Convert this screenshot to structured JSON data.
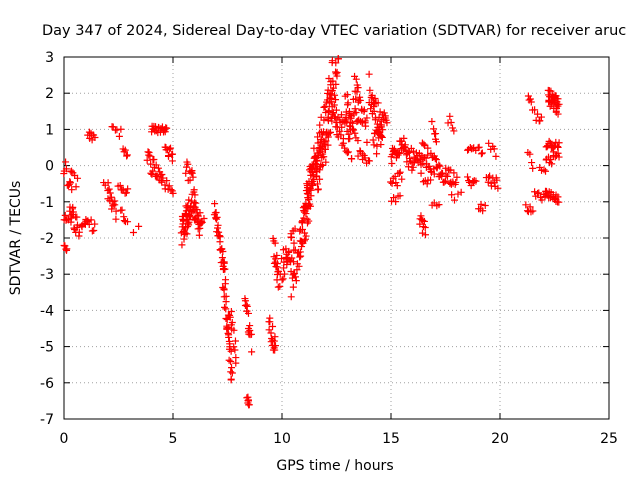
{
  "chart_data": {
    "type": "scatter",
    "title": "Day 347 of 2024, Sidereal Day-to-day VTEC variation (SDTVAR) for receiver aruc",
    "xlabel": "GPS time / hours",
    "ylabel": "SDTVAR / TECUs",
    "xlim": [
      0,
      25
    ],
    "ylim": [
      -7,
      3
    ],
    "xticks": [
      0,
      5,
      10,
      15,
      20,
      25
    ],
    "yticks": [
      -7,
      -6,
      -5,
      -4,
      -3,
      -2,
      -1,
      0,
      1,
      2,
      3
    ],
    "grid": true,
    "marker": "+",
    "color": "#ff0000",
    "series": [
      {
        "name": "SDTVAR",
        "clusters": [
          {
            "t0": 0.0,
            "t1": 0.35,
            "v0": -0.1,
            "v1": -0.5,
            "jitter": 0.3,
            "n": 10
          },
          {
            "t0": 0.0,
            "t1": 0.4,
            "v0": -1.4,
            "v1": -1.3,
            "jitter": 0.15,
            "n": 10
          },
          {
            "t0": 0.0,
            "t1": 0.15,
            "v0": -2.2,
            "v1": -2.3,
            "jitter": 0.1,
            "n": 5
          },
          {
            "t0": 0.3,
            "t1": 0.7,
            "v0": -1.3,
            "v1": -1.8,
            "jitter": 0.25,
            "n": 14
          },
          {
            "t0": 0.3,
            "t1": 0.6,
            "v0": -0.2,
            "v1": -0.5,
            "jitter": 0.15,
            "n": 6
          },
          {
            "t0": 0.8,
            "t1": 1.1,
            "v0": -1.6,
            "v1": -1.5,
            "jitter": 0.15,
            "n": 8
          },
          {
            "t0": 1.1,
            "t1": 1.4,
            "v0": 0.9,
            "v1": 0.7,
            "jitter": 0.12,
            "n": 8
          },
          {
            "t0": 1.1,
            "t1": 1.4,
            "v0": -1.6,
            "v1": -1.7,
            "jitter": 0.15,
            "n": 6
          },
          {
            "t0": 1.8,
            "t1": 2.0,
            "v0": -0.5,
            "v1": -0.5,
            "jitter": 0.1,
            "n": 3
          },
          {
            "t0": 2.0,
            "t1": 2.4,
            "v0": -0.8,
            "v1": -1.3,
            "jitter": 0.25,
            "n": 14
          },
          {
            "t0": 2.2,
            "t1": 2.6,
            "v0": 1.1,
            "v1": 0.9,
            "jitter": 0.15,
            "n": 6
          },
          {
            "t0": 2.5,
            "t1": 2.9,
            "v0": -0.6,
            "v1": -0.7,
            "jitter": 0.12,
            "n": 8
          },
          {
            "t0": 2.6,
            "t1": 2.9,
            "v0": -1.3,
            "v1": -1.5,
            "jitter": 0.12,
            "n": 6
          },
          {
            "t0": 2.7,
            "t1": 2.9,
            "v0": 0.5,
            "v1": 0.3,
            "jitter": 0.15,
            "n": 5
          },
          {
            "t0": 3.2,
            "t1": 3.4,
            "v0": -1.8,
            "v1": -1.7,
            "jitter": 0.05,
            "n": 2
          },
          {
            "t0": 3.8,
            "t1": 4.5,
            "v0": 0.2,
            "v1": -0.3,
            "jitter": 0.3,
            "n": 22
          },
          {
            "t0": 4.0,
            "t1": 4.7,
            "v0": 1.0,
            "v1": 1.0,
            "jitter": 0.1,
            "n": 20
          },
          {
            "t0": 4.6,
            "t1": 5.0,
            "v0": 0.8,
            "v1": 0.2,
            "jitter": 0.25,
            "n": 12
          },
          {
            "t0": 4.5,
            "t1": 5.0,
            "v0": -0.4,
            "v1": -0.7,
            "jitter": 0.15,
            "n": 10
          },
          {
            "t0": 5.4,
            "t1": 5.8,
            "v0": -1.8,
            "v1": -1.2,
            "jitter": 0.45,
            "n": 34
          },
          {
            "t0": 5.6,
            "t1": 6.0,
            "v0": 0.0,
            "v1": -0.6,
            "jitter": 0.25,
            "n": 14
          },
          {
            "t0": 5.8,
            "t1": 6.3,
            "v0": -1.0,
            "v1": -1.7,
            "jitter": 0.35,
            "n": 22
          },
          {
            "t0": 6.0,
            "t1": 6.4,
            "v0": -1.5,
            "v1": -1.6,
            "jitter": 0.2,
            "n": 12
          },
          {
            "t0": 6.9,
            "t1": 7.4,
            "v0": -1.2,
            "v1": -3.0,
            "jitter": 0.3,
            "n": 30
          },
          {
            "t0": 7.3,
            "t1": 7.7,
            "v0": -3.0,
            "v1": -5.8,
            "jitter": 0.45,
            "n": 34
          },
          {
            "t0": 7.6,
            "t1": 7.9,
            "v0": -4.0,
            "v1": -5.3,
            "jitter": 0.35,
            "n": 12
          },
          {
            "t0": 8.3,
            "t1": 8.6,
            "v0": -3.6,
            "v1": -4.9,
            "jitter": 0.25,
            "n": 16
          },
          {
            "t0": 8.4,
            "t1": 8.5,
            "v0": -6.4,
            "v1": -6.6,
            "jitter": 0.08,
            "n": 8
          },
          {
            "t0": 9.4,
            "t1": 9.7,
            "v0": -4.3,
            "v1": -5.1,
            "jitter": 0.3,
            "n": 16
          },
          {
            "t0": 9.6,
            "t1": 9.9,
            "v0": -2.2,
            "v1": -3.2,
            "jitter": 0.35,
            "n": 18
          },
          {
            "t0": 10.0,
            "t1": 10.6,
            "v0": -2.8,
            "v1": -2.0,
            "jitter": 0.4,
            "n": 28
          },
          {
            "t0": 10.4,
            "t1": 11.2,
            "v0": -3.5,
            "v1": -1.2,
            "jitter": 0.5,
            "n": 30
          },
          {
            "t0": 10.8,
            "t1": 11.6,
            "v0": -2.0,
            "v1": 0.2,
            "jitter": 0.5,
            "n": 40
          },
          {
            "t0": 11.1,
            "t1": 11.9,
            "v0": -1.0,
            "v1": 1.2,
            "jitter": 0.55,
            "n": 42
          },
          {
            "t0": 11.6,
            "t1": 12.3,
            "v0": -0.5,
            "v1": 2.4,
            "jitter": 0.55,
            "n": 44
          },
          {
            "t0": 12.0,
            "t1": 12.6,
            "v0": 0.5,
            "v1": 2.9,
            "jitter": 0.5,
            "n": 34
          },
          {
            "t0": 12.4,
            "t1": 13.2,
            "v0": 1.3,
            "v1": 0.6,
            "jitter": 0.45,
            "n": 34
          },
          {
            "t0": 12.9,
            "t1": 13.5,
            "v0": 1.7,
            "v1": 0.9,
            "jitter": 0.5,
            "n": 26
          },
          {
            "t0": 13.3,
            "t1": 13.9,
            "v0": 2.2,
            "v1": 1.0,
            "jitter": 0.45,
            "n": 24
          },
          {
            "t0": 13.5,
            "t1": 14.0,
            "v0": 0.3,
            "v1": 0.0,
            "jitter": 0.2,
            "n": 10
          },
          {
            "t0": 14.0,
            "t1": 14.6,
            "v0": 2.2,
            "v1": 0.8,
            "jitter": 0.5,
            "n": 30
          },
          {
            "t0": 14.2,
            "t1": 14.8,
            "v0": 0.5,
            "v1": 1.3,
            "jitter": 0.4,
            "n": 22
          },
          {
            "t0": 15.0,
            "t1": 15.6,
            "v0": 0.2,
            "v1": 0.8,
            "jitter": 0.3,
            "n": 24
          },
          {
            "t0": 15.0,
            "t1": 15.5,
            "v0": -0.5,
            "v1": -0.3,
            "jitter": 0.2,
            "n": 10
          },
          {
            "t0": 15.0,
            "t1": 15.4,
            "v0": -0.9,
            "v1": -0.9,
            "jitter": 0.1,
            "n": 5
          },
          {
            "t0": 15.6,
            "t1": 16.4,
            "v0": 0.3,
            "v1": 0.0,
            "jitter": 0.3,
            "n": 30
          },
          {
            "t0": 16.3,
            "t1": 16.6,
            "v0": -1.5,
            "v1": -1.8,
            "jitter": 0.2,
            "n": 10
          },
          {
            "t0": 16.4,
            "t1": 17.2,
            "v0": 0.4,
            "v1": -0.2,
            "jitter": 0.3,
            "n": 30
          },
          {
            "t0": 16.4,
            "t1": 16.8,
            "v0": -0.3,
            "v1": -0.5,
            "jitter": 0.12,
            "n": 6
          },
          {
            "t0": 16.9,
            "t1": 17.1,
            "v0": 1.1,
            "v1": 0.6,
            "jitter": 0.2,
            "n": 6
          },
          {
            "t0": 16.9,
            "t1": 17.2,
            "v0": -1.1,
            "v1": -1.1,
            "jitter": 0.08,
            "n": 4
          },
          {
            "t0": 17.2,
            "t1": 18.0,
            "v0": -0.2,
            "v1": -0.3,
            "jitter": 0.25,
            "n": 24
          },
          {
            "t0": 17.6,
            "t1": 17.9,
            "v0": 1.3,
            "v1": 1.0,
            "jitter": 0.15,
            "n": 5
          },
          {
            "t0": 17.8,
            "t1": 18.2,
            "v0": -0.9,
            "v1": -0.8,
            "jitter": 0.1,
            "n": 4
          },
          {
            "t0": 18.5,
            "t1": 18.8,
            "v0": 0.5,
            "v1": 0.4,
            "jitter": 0.1,
            "n": 6
          },
          {
            "t0": 18.5,
            "t1": 18.9,
            "v0": -0.4,
            "v1": -0.5,
            "jitter": 0.12,
            "n": 8
          },
          {
            "t0": 18.9,
            "t1": 19.2,
            "v0": 0.5,
            "v1": 0.4,
            "jitter": 0.1,
            "n": 5
          },
          {
            "t0": 19.0,
            "t1": 19.3,
            "v0": -1.1,
            "v1": -1.2,
            "jitter": 0.1,
            "n": 5
          },
          {
            "t0": 19.4,
            "t1": 19.9,
            "v0": -0.4,
            "v1": -0.5,
            "jitter": 0.15,
            "n": 12
          },
          {
            "t0": 19.5,
            "t1": 19.8,
            "v0": 0.6,
            "v1": 0.3,
            "jitter": 0.15,
            "n": 5
          },
          {
            "t0": 21.3,
            "t1": 21.5,
            "v0": 1.8,
            "v1": 1.6,
            "jitter": 0.15,
            "n": 5
          },
          {
            "t0": 21.2,
            "t1": 21.5,
            "v0": -1.2,
            "v1": -1.3,
            "jitter": 0.12,
            "n": 6
          },
          {
            "t0": 21.3,
            "t1": 21.5,
            "v0": 0.3,
            "v1": 0.0,
            "jitter": 0.15,
            "n": 4
          },
          {
            "t0": 21.6,
            "t1": 21.9,
            "v0": 1.4,
            "v1": 1.2,
            "jitter": 0.15,
            "n": 6
          },
          {
            "t0": 21.6,
            "t1": 21.9,
            "v0": -0.8,
            "v1": -0.9,
            "jitter": 0.12,
            "n": 6
          },
          {
            "t0": 21.8,
            "t1": 22.1,
            "v0": 0.0,
            "v1": -0.1,
            "jitter": 0.1,
            "n": 4
          },
          {
            "t0": 22.0,
            "t1": 22.7,
            "v0": -0.8,
            "v1": -0.9,
            "jitter": 0.15,
            "n": 20
          },
          {
            "t0": 22.1,
            "t1": 22.7,
            "v0": 0.6,
            "v1": 0.6,
            "jitter": 0.12,
            "n": 16
          },
          {
            "t0": 22.1,
            "t1": 22.7,
            "v0": 0.0,
            "v1": 0.4,
            "jitter": 0.2,
            "n": 12
          },
          {
            "t0": 22.2,
            "t1": 22.7,
            "v0": 1.9,
            "v1": 1.6,
            "jitter": 0.25,
            "n": 34
          }
        ]
      }
    ]
  }
}
